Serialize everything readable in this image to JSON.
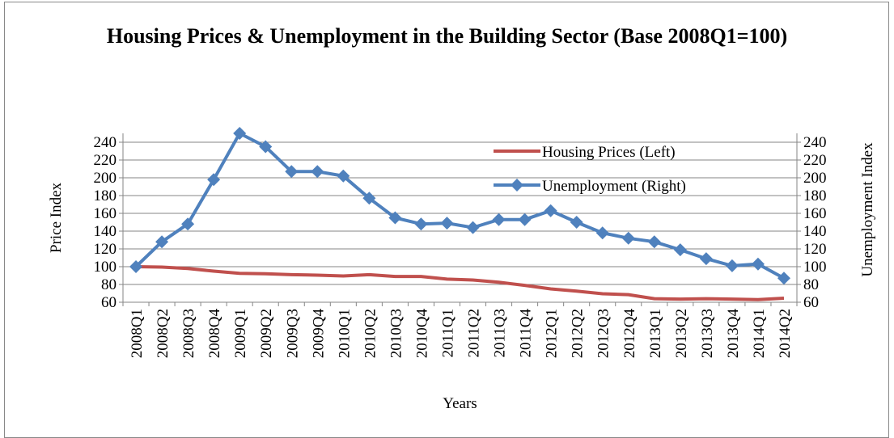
{
  "chart_data": {
    "type": "line",
    "title": "Housing Prices & Unemployment in the Building Sector (Base 2008Q1=100)",
    "x_label": "Years",
    "y_label": "Price Index",
    "y2_label": "Unemployment Index",
    "categories": [
      "2008Q1",
      "2008Q2",
      "2008Q3",
      "2008Q4",
      "2009Q1",
      "2009Q2",
      "2009Q3",
      "2009Q4",
      "2010Q1",
      "2010Q2",
      "2010Q3",
      "2010Q4",
      "2011Q1",
      "2011Q2",
      "2011Q3",
      "2011Q4",
      "2012Q1",
      "2012Q2",
      "2012Q3",
      "2012Q4",
      "2013Q1",
      "2013Q2",
      "2013Q3",
      "2013Q4",
      "2014Q1",
      "2014Q2"
    ],
    "series": [
      {
        "name": "Housing Prices (Left)",
        "color": "#c0504d",
        "values": [
          100,
          99.5,
          98,
          95,
          92.5,
          92,
          91,
          90.5,
          89.5,
          91,
          89,
          89,
          86,
          85,
          82.5,
          79,
          75,
          72.5,
          69.5,
          68.5,
          64,
          63.5,
          64,
          63.5,
          63,
          64.5
        ]
      },
      {
        "name": "Unemployment (Right)",
        "color": "#4f81bd",
        "axis": "y2",
        "marker": "diamond",
        "values": [
          100,
          128,
          148,
          198,
          250,
          235,
          207,
          207,
          202,
          177,
          155,
          148,
          149,
          144,
          153,
          153,
          163,
          150,
          138,
          132,
          128,
          119,
          109,
          101,
          103,
          87
        ]
      }
    ],
    "ylim": [
      60,
      250
    ],
    "yticks": [
      60,
      80,
      100,
      120,
      140,
      160,
      180,
      200,
      220,
      240
    ],
    "y2lim": [
      60,
      250
    ],
    "y2ticks": [
      60,
      80,
      100,
      120,
      140,
      160,
      180,
      200,
      220,
      240
    ],
    "grid": true,
    "legend": "top-right"
  }
}
